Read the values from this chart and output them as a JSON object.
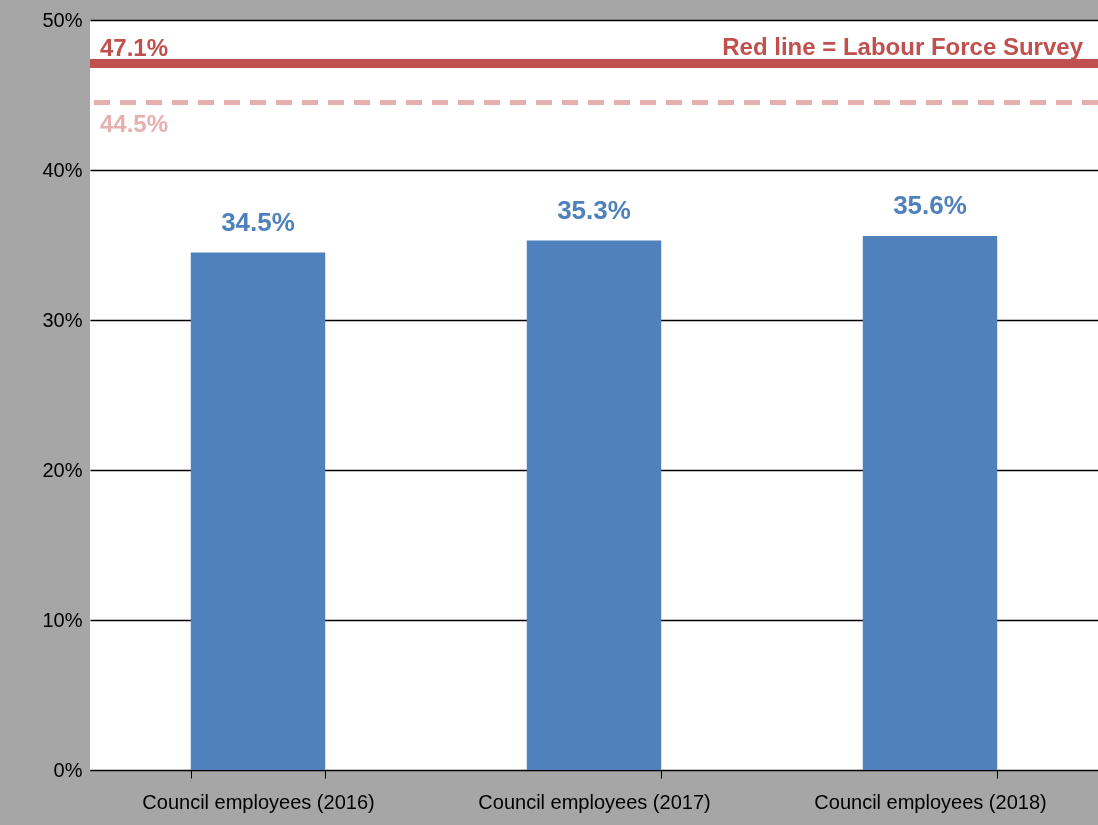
{
  "chart_data": {
    "type": "bar",
    "categories": [
      "Council employees (2016)",
      "Council employees (2017)",
      "Council employees (2018)"
    ],
    "values": [
      34.5,
      35.3,
      35.6
    ],
    "value_labels": [
      "34.5%",
      "35.3%",
      "35.6%"
    ],
    "color": "#4f81bd",
    "ylim": [
      0,
      50
    ],
    "yticks": [
      {
        "value": 0,
        "label": "0%"
      },
      {
        "value": 10,
        "label": "10%"
      },
      {
        "value": 20,
        "label": "20%"
      },
      {
        "value": 30,
        "label": "30%"
      },
      {
        "value": 40,
        "label": "40%"
      },
      {
        "value": 50,
        "label": "50%"
      }
    ],
    "grid": "y",
    "ref_lines": [
      {
        "axis": "y",
        "value": 47.1,
        "label": "47.1%",
        "color": "#c0504d",
        "line_style": "solid"
      },
      {
        "axis": "y",
        "value": 44.5,
        "label": "44.5%",
        "color": "#e6b0ae",
        "line_style": "dashed"
      }
    ],
    "annotations": [
      "Red line = Labour Force Survey"
    ]
  }
}
